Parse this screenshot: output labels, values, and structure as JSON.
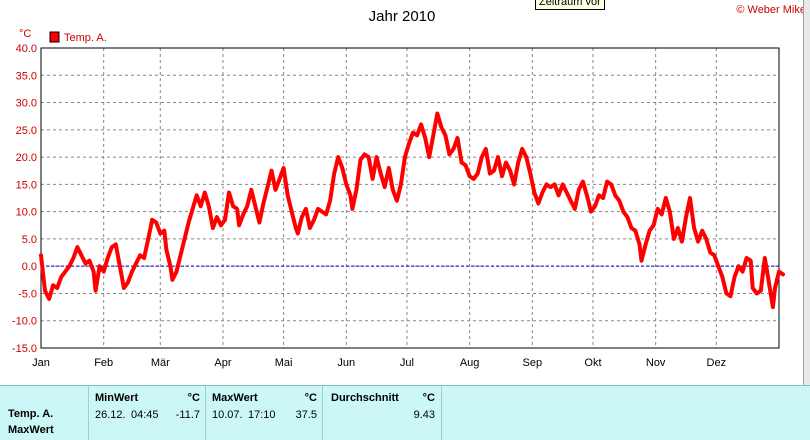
{
  "chart_data": {
    "type": "line",
    "title": "Jahr 2010",
    "ylabel": "°C",
    "ylim": [
      -15,
      40
    ],
    "yticks": [
      "40.0",
      "35.0",
      "30.0",
      "25.0",
      "20.0",
      "15.0",
      "10.0",
      "5.0",
      "0.0",
      "-5.0",
      "-10.0",
      "-15.0"
    ],
    "xticks": [
      "Jan",
      "Feb",
      "Mär",
      "Apr",
      "Mai",
      "Jun",
      "Jul",
      "Aug",
      "Sep",
      "Okt",
      "Nov",
      "Dez"
    ],
    "grid": true,
    "legend_position": "top-left",
    "series": [
      {
        "name": "Temp. A.",
        "color": "#ff0000",
        "points": [
          [
            1,
            2.0
          ],
          [
            3,
            -4.5
          ],
          [
            5,
            -6.0
          ],
          [
            7,
            -3.5
          ],
          [
            9,
            -4.0
          ],
          [
            11,
            -2.0
          ],
          [
            13,
            -1.0
          ],
          [
            15,
            0.0
          ],
          [
            17,
            1.5
          ],
          [
            19,
            3.5
          ],
          [
            21,
            2.0
          ],
          [
            23,
            0.5
          ],
          [
            25,
            1.0
          ],
          [
            27,
            -1.0
          ],
          [
            28,
            -4.5
          ],
          [
            30,
            0.0
          ],
          [
            32,
            -1.0
          ],
          [
            34,
            1.5
          ],
          [
            36,
            3.5
          ],
          [
            38,
            4.0
          ],
          [
            39,
            2.0
          ],
          [
            41,
            -2.0
          ],
          [
            42,
            -4.0
          ],
          [
            44,
            -3.0
          ],
          [
            46,
            -1.0
          ],
          [
            48,
            0.5
          ],
          [
            50,
            2.0
          ],
          [
            52,
            1.5
          ],
          [
            54,
            5.0
          ],
          [
            56,
            8.5
          ],
          [
            58,
            8.0
          ],
          [
            60,
            6.0
          ],
          [
            62,
            6.5
          ],
          [
            63,
            3.0
          ],
          [
            65,
            0.0
          ],
          [
            66,
            -2.5
          ],
          [
            68,
            -1.0
          ],
          [
            70,
            2.0
          ],
          [
            72,
            5.0
          ],
          [
            74,
            8.0
          ],
          [
            76,
            10.5
          ],
          [
            78,
            13.0
          ],
          [
            80,
            11.0
          ],
          [
            82,
            13.5
          ],
          [
            84,
            11.0
          ],
          [
            86,
            7.0
          ],
          [
            88,
            9.0
          ],
          [
            90,
            7.5
          ],
          [
            92,
            8.5
          ],
          [
            94,
            13.5
          ],
          [
            96,
            11.0
          ],
          [
            98,
            10.5
          ],
          [
            99,
            7.5
          ],
          [
            101,
            9.5
          ],
          [
            103,
            11.0
          ],
          [
            105,
            14.0
          ],
          [
            107,
            11.0
          ],
          [
            109,
            8.0
          ],
          [
            111,
            11.5
          ],
          [
            113,
            14.5
          ],
          [
            115,
            17.5
          ],
          [
            117,
            14.0
          ],
          [
            119,
            16.0
          ],
          [
            121,
            18.0
          ],
          [
            123,
            13.0
          ],
          [
            125,
            10.0
          ],
          [
            127,
            7.0
          ],
          [
            128,
            6.0
          ],
          [
            130,
            9.0
          ],
          [
            132,
            10.5
          ],
          [
            134,
            7.0
          ],
          [
            136,
            8.5
          ],
          [
            138,
            10.5
          ],
          [
            140,
            10.0
          ],
          [
            142,
            9.5
          ],
          [
            144,
            12.0
          ],
          [
            146,
            17.0
          ],
          [
            148,
            20.0
          ],
          [
            150,
            18.0
          ],
          [
            152,
            15.0
          ],
          [
            154,
            13.0
          ],
          [
            155,
            10.5
          ],
          [
            157,
            14.0
          ],
          [
            159,
            19.5
          ],
          [
            161,
            20.5
          ],
          [
            163,
            20.0
          ],
          [
            165,
            16.0
          ],
          [
            167,
            20.0
          ],
          [
            169,
            17.0
          ],
          [
            171,
            14.5
          ],
          [
            173,
            18.0
          ],
          [
            175,
            14.0
          ],
          [
            177,
            12.0
          ],
          [
            179,
            15.0
          ],
          [
            181,
            20.0
          ],
          [
            183,
            22.5
          ],
          [
            185,
            24.5
          ],
          [
            187,
            24.0
          ],
          [
            189,
            26.0
          ],
          [
            191,
            23.5
          ],
          [
            193,
            20.0
          ],
          [
            195,
            24.0
          ],
          [
            197,
            28.0
          ],
          [
            199,
            25.5
          ],
          [
            201,
            24.0
          ],
          [
            203,
            20.5
          ],
          [
            205,
            21.5
          ],
          [
            207,
            23.5
          ],
          [
            209,
            19.0
          ],
          [
            211,
            18.5
          ],
          [
            213,
            16.5
          ],
          [
            215,
            16.0
          ],
          [
            217,
            17.0
          ],
          [
            219,
            20.0
          ],
          [
            221,
            21.5
          ],
          [
            223,
            17.0
          ],
          [
            225,
            17.5
          ],
          [
            227,
            20.0
          ],
          [
            229,
            16.5
          ],
          [
            231,
            19.0
          ],
          [
            233,
            17.5
          ],
          [
            235,
            15.0
          ],
          [
            237,
            19.0
          ],
          [
            239,
            21.5
          ],
          [
            241,
            20.0
          ],
          [
            243,
            17.0
          ],
          [
            245,
            13.5
          ],
          [
            247,
            11.5
          ],
          [
            249,
            13.5
          ],
          [
            251,
            15.0
          ],
          [
            253,
            14.5
          ],
          [
            255,
            15.0
          ],
          [
            257,
            13.0
          ],
          [
            259,
            15.0
          ],
          [
            261,
            13.5
          ],
          [
            263,
            12.0
          ],
          [
            265,
            10.5
          ],
          [
            267,
            14.0
          ],
          [
            269,
            15.5
          ],
          [
            271,
            13.0
          ],
          [
            273,
            10.0
          ],
          [
            275,
            11.0
          ],
          [
            277,
            13.0
          ],
          [
            279,
            12.5
          ],
          [
            281,
            15.5
          ],
          [
            283,
            15.0
          ],
          [
            285,
            13.0
          ],
          [
            287,
            12.0
          ],
          [
            289,
            10.0
          ],
          [
            291,
            9.0
          ],
          [
            293,
            7.0
          ],
          [
            295,
            6.5
          ],
          [
            297,
            4.0
          ],
          [
            298,
            1.0
          ],
          [
            300,
            4.0
          ],
          [
            302,
            6.5
          ],
          [
            304,
            7.5
          ],
          [
            306,
            10.5
          ],
          [
            308,
            9.5
          ],
          [
            310,
            12.5
          ],
          [
            312,
            10.0
          ],
          [
            314,
            5.0
          ],
          [
            316,
            7.0
          ],
          [
            318,
            4.5
          ],
          [
            320,
            9.0
          ],
          [
            322,
            12.5
          ],
          [
            324,
            7.0
          ],
          [
            326,
            4.5
          ],
          [
            328,
            6.5
          ],
          [
            330,
            5.0
          ],
          [
            332,
            2.5
          ],
          [
            334,
            2.0
          ],
          [
            336,
            0.0
          ],
          [
            338,
            -2.0
          ],
          [
            340,
            -5.0
          ],
          [
            342,
            -5.5
          ],
          [
            344,
            -2.0
          ],
          [
            346,
            0.0
          ],
          [
            348,
            -1.0
          ],
          [
            350,
            1.5
          ],
          [
            352,
            1.0
          ],
          [
            353,
            -4.0
          ],
          [
            355,
            -5.0
          ],
          [
            357,
            -4.5
          ],
          [
            359,
            1.5
          ],
          [
            361,
            -3.0
          ],
          [
            363,
            -7.5
          ],
          [
            364,
            -4.0
          ],
          [
            366,
            -1.0
          ],
          [
            368,
            -1.5
          ]
        ]
      }
    ]
  },
  "ui": {
    "tooltip": "Zeitraum vor",
    "copyright": "© Weber Mike"
  },
  "stats": {
    "row_labels": [
      "Temp. A.",
      "MaxWert"
    ],
    "columns": [
      {
        "label": "MinWert",
        "unit": "°C",
        "date": "26.12.",
        "time": "04:45",
        "value": "-11.7"
      },
      {
        "label": "MaxWert",
        "unit": "°C",
        "date": "10.07.",
        "time": "17:10",
        "value": "37.5"
      },
      {
        "label": "Durchschnitt",
        "unit": "°C",
        "date": "",
        "time": "",
        "value": "9.43"
      }
    ]
  }
}
